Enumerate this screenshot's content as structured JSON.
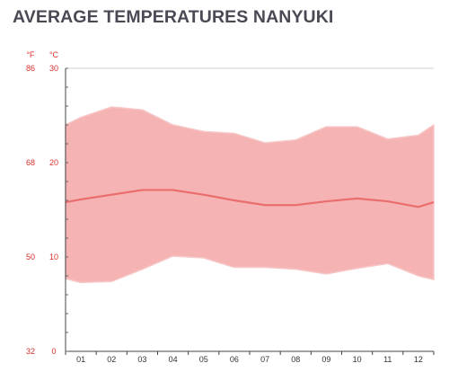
{
  "title": "AVERAGE TEMPERATURES NANYUKI",
  "colors": {
    "band_fill": "#f5b3b3",
    "band_edge": "#f7c6c6",
    "mean_line": "#ea6e6c",
    "axis_text": "#d9302c",
    "title_text": "#4a4a55"
  },
  "chart_data": {
    "type": "area",
    "categories": [
      "01",
      "02",
      "03",
      "04",
      "05",
      "06",
      "07",
      "08",
      "09",
      "10",
      "11",
      "12"
    ],
    "units": {
      "fahrenheit": "°F",
      "celsius": "°C"
    },
    "ylim": [
      0,
      30
    ],
    "celsius_ticks": [
      "30",
      "20",
      "10",
      "0"
    ],
    "fahrenheit_ticks": [
      "86",
      "68",
      "50",
      "32"
    ],
    "gridline_at": 30,
    "series": [
      {
        "role": "max",
        "values": [
          24.8,
          25.9,
          25.6,
          24.0,
          23.3,
          23.1,
          22.1,
          22.4,
          23.8,
          23.8,
          22.5,
          22.9
        ]
      },
      {
        "role": "mean",
        "values": [
          16.1,
          16.6,
          17.1,
          17.1,
          16.6,
          16.0,
          15.5,
          15.5,
          15.9,
          16.2,
          15.9,
          15.3
        ]
      },
      {
        "role": "min",
        "values": [
          7.3,
          7.4,
          8.7,
          10.1,
          9.9,
          8.9,
          8.9,
          8.7,
          8.2,
          8.8,
          9.3,
          8.0
        ]
      }
    ],
    "edge_values": {
      "left": {
        "max": 24.0,
        "mean": 15.8,
        "min": 7.7
      },
      "right": {
        "max": 24.0,
        "mean": 15.8,
        "min": 7.6
      }
    }
  }
}
